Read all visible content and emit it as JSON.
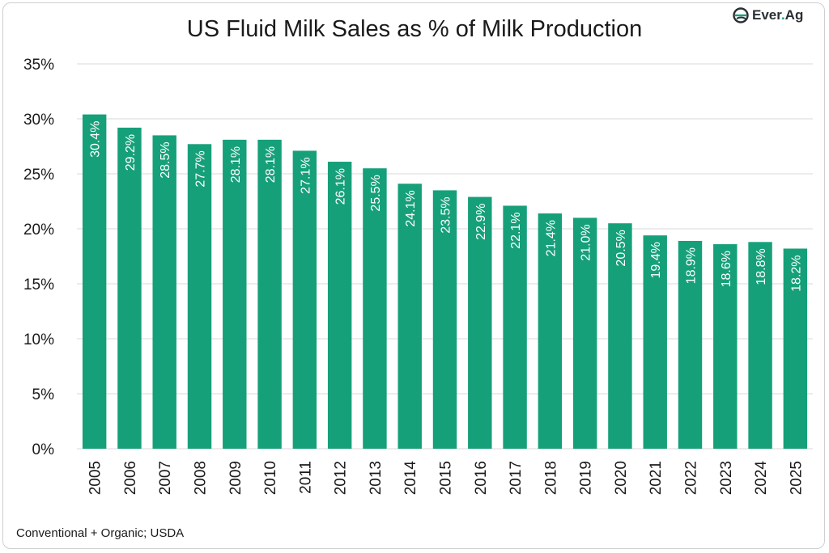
{
  "title": "US Fluid Milk Sales as % of Milk Production",
  "logo": {
    "text_main": "Ever",
    "text_dot": ".",
    "text_tail": "Ag",
    "icon": "leaf-e-icon"
  },
  "footnote": "Conventional + Organic; USDA",
  "colors": {
    "bar": "#16a07a",
    "grid": "#d9d9d9",
    "label": "#ffffff",
    "axis_text": "#1a1a1a"
  },
  "chart_data": {
    "type": "bar",
    "title": "US Fluid Milk Sales as % of Milk Production",
    "xlabel": "",
    "ylabel": "",
    "ylim": [
      0,
      35
    ],
    "yticks": [
      0,
      5,
      10,
      15,
      20,
      25,
      30,
      35
    ],
    "ytick_labels": [
      "0%",
      "5%",
      "10%",
      "15%",
      "20%",
      "25%",
      "30%",
      "35%"
    ],
    "grid": true,
    "categories": [
      "2005",
      "2006",
      "2007",
      "2008",
      "2009",
      "2010",
      "2011",
      "2012",
      "2013",
      "2014",
      "2015",
      "2016",
      "2017",
      "2018",
      "2019",
      "2020",
      "2021",
      "2022",
      "2023",
      "2024",
      "2025"
    ],
    "values": [
      30.4,
      29.2,
      28.5,
      27.7,
      28.1,
      28.1,
      27.1,
      26.1,
      25.5,
      24.1,
      23.5,
      22.9,
      22.1,
      21.4,
      21.0,
      20.5,
      19.4,
      18.9,
      18.6,
      18.8,
      18.2
    ],
    "data_labels": [
      "30.4%",
      "29.2%",
      "28.5%",
      "27.7%",
      "28.1%",
      "28.1%",
      "27.1%",
      "26.1%",
      "25.5%",
      "24.1%",
      "23.5%",
      "22.9%",
      "22.1%",
      "21.4%",
      "21.0%",
      "20.5%",
      "19.4%",
      "18.9%",
      "18.6%",
      "18.8%",
      "18.2%"
    ]
  }
}
